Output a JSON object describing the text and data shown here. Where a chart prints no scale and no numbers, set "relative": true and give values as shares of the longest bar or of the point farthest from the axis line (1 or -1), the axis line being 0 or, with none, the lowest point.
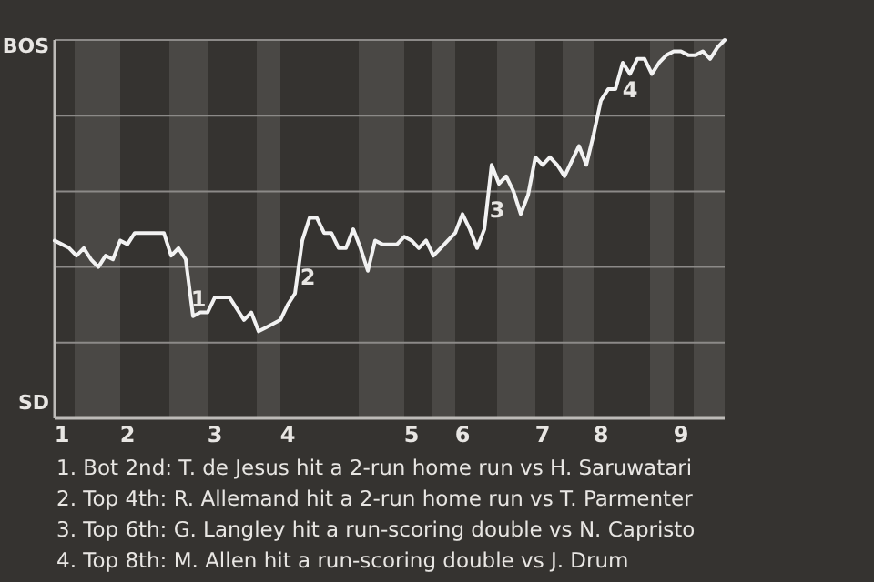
{
  "chart_data": {
    "type": "line",
    "relative": true,
    "categories": [
      null,
      "1",
      null,
      null,
      null,
      null,
      null,
      null,
      null,
      null,
      "2",
      null,
      null,
      null,
      null,
      null,
      null,
      null,
      null,
      null,
      null,
      null,
      "3",
      null,
      null,
      null,
      null,
      null,
      null,
      null,
      null,
      null,
      "4",
      null,
      null,
      null,
      null,
      null,
      null,
      null,
      null,
      null,
      null,
      null,
      null,
      null,
      null,
      null,
      null,
      "5",
      null,
      null,
      null,
      null,
      null,
      null,
      "6",
      null,
      null,
      null,
      null,
      null,
      null,
      null,
      null,
      null,
      null,
      "7",
      null,
      null,
      null,
      null,
      null,
      null,
      null,
      "8",
      null,
      null,
      null,
      null,
      null,
      null,
      null,
      null,
      null,
      null,
      "9",
      null,
      null,
      null,
      null,
      null,
      null
    ],
    "series": [
      {
        "color": "#f2f2f2",
        "values": [
          0.47,
          0.46,
          0.45,
          0.43,
          0.45,
          0.42,
          0.4,
          0.43,
          0.42,
          0.47,
          0.46,
          0.49,
          0.49,
          0.49,
          0.49,
          0.49,
          0.43,
          0.45,
          0.42,
          0.27,
          0.28,
          0.28,
          0.32,
          0.32,
          0.32,
          0.29,
          0.26,
          0.28,
          0.23,
          0.24,
          0.25,
          0.26,
          0.3,
          0.33,
          0.47,
          0.53,
          0.53,
          0.49,
          0.49,
          0.45,
          0.45,
          0.5,
          0.45,
          0.39,
          0.47,
          0.46,
          0.46,
          0.46,
          0.48,
          0.47,
          0.45,
          0.47,
          0.43,
          0.45,
          0.47,
          0.49,
          0.54,
          0.5,
          0.45,
          0.5,
          0.67,
          0.62,
          0.64,
          0.6,
          0.54,
          0.59,
          0.69,
          0.67,
          0.69,
          0.67,
          0.64,
          0.68,
          0.72,
          0.67,
          0.75,
          0.84,
          0.87,
          0.87,
          0.94,
          0.91,
          0.95,
          0.95,
          0.91,
          0.94,
          0.96,
          0.97,
          0.97,
          0.96,
          0.96,
          0.97,
          0.95,
          0.98,
          1.0
        ]
      }
    ],
    "grid": "y",
    "annotations": [
      "BOS",
      "SD",
      "1",
      "2",
      "3",
      "4",
      "1. Bot 2nd: T. de Jesus hit a 2-run home run vs H. Saruwatari",
      "2. Top 4th: R. Allemand hit a 2-run home run vs T. Parmenter",
      "3. Top 6th: G. Langley hit a run-scoring double vs N. Capristo",
      "4. Top 8th: M. Allen hit a run-scoring double vs J. Drum"
    ]
  }
}
